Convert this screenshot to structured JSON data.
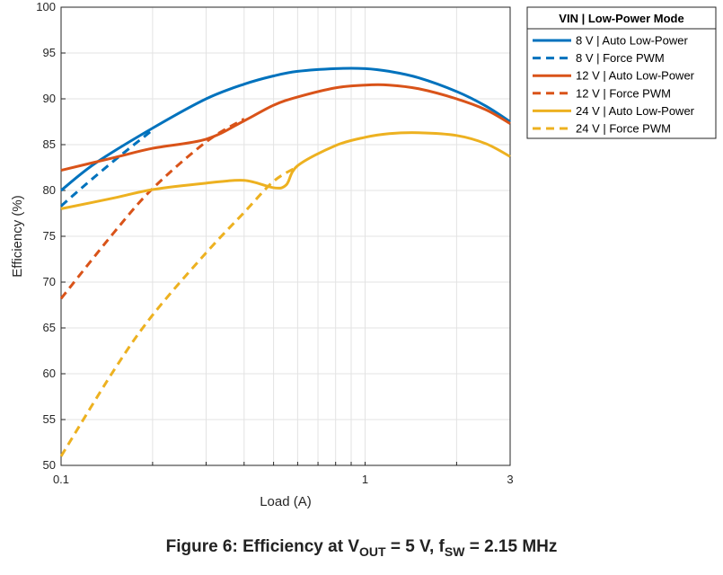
{
  "chart_data": {
    "type": "line",
    "title": "",
    "xlabel": "Load (A)",
    "ylabel": "Efficiency (%)",
    "xscale": "log",
    "xlim": [
      0.1,
      3
    ],
    "ylim": [
      50,
      100
    ],
    "grid": true,
    "x_ticks": [
      0.1,
      1,
      3
    ],
    "x_tick_labels": [
      "0.1",
      "1",
      "3"
    ],
    "y_ticks": [
      50,
      55,
      60,
      65,
      70,
      75,
      80,
      85,
      90,
      95,
      100
    ],
    "y_tick_labels": [
      "50",
      "55",
      "60",
      "65",
      "70",
      "75",
      "80",
      "85",
      "90",
      "95",
      "100"
    ],
    "legend_title": "VIN | Low-Power Mode",
    "legend_position": "outside top-right",
    "series": [
      {
        "name": "8 V | Auto Low-Power",
        "color": "#0072BD",
        "style": "solid",
        "x": [
          0.1,
          0.13,
          0.2,
          0.3,
          0.4,
          0.5,
          0.6,
          0.8,
          1.0,
          1.2,
          1.5,
          2.0,
          2.5,
          3.0
        ],
        "y": [
          80.0,
          83.0,
          86.8,
          90.0,
          91.6,
          92.5,
          93.0,
          93.3,
          93.3,
          93.0,
          92.3,
          90.8,
          89.2,
          87.5
        ]
      },
      {
        "name": "8 V | Force PWM",
        "color": "#0072BD",
        "style": "dashed",
        "x": [
          0.1,
          0.12,
          0.15,
          0.18,
          0.2
        ],
        "y": [
          78.3,
          80.6,
          83.3,
          85.4,
          86.6
        ]
      },
      {
        "name": "12 V | Auto Low-Power",
        "color": "#D95319",
        "style": "solid",
        "x": [
          0.1,
          0.15,
          0.2,
          0.3,
          0.4,
          0.5,
          0.6,
          0.8,
          1.0,
          1.2,
          1.5,
          2.0,
          2.5,
          3.0
        ],
        "y": [
          82.2,
          83.6,
          84.6,
          85.6,
          87.6,
          89.3,
          90.2,
          91.2,
          91.5,
          91.5,
          91.1,
          90.0,
          88.8,
          87.3
        ]
      },
      {
        "name": "12 V | Force PWM",
        "color": "#D95319",
        "style": "dashed",
        "x": [
          0.1,
          0.15,
          0.2,
          0.3,
          0.4
        ],
        "y": [
          68.2,
          75.5,
          80.2,
          85.3,
          87.8
        ]
      },
      {
        "name": "24 V | Auto Low-Power",
        "color": "#EDB120",
        "style": "solid",
        "x": [
          0.1,
          0.15,
          0.2,
          0.3,
          0.4,
          0.5,
          0.55,
          0.6,
          0.8,
          1.0,
          1.2,
          1.5,
          2.0,
          2.5,
          3.0
        ],
        "y": [
          78.0,
          79.2,
          80.1,
          80.8,
          81.1,
          80.3,
          80.6,
          82.7,
          84.9,
          85.8,
          86.2,
          86.3,
          86.0,
          85.1,
          83.7
        ]
      },
      {
        "name": "24 V | Force PWM",
        "color": "#EDB120",
        "style": "dashed",
        "x": [
          0.1,
          0.15,
          0.2,
          0.3,
          0.4,
          0.5,
          0.6
        ],
        "y": [
          51.0,
          60.5,
          66.4,
          73.2,
          77.6,
          81.0,
          82.6
        ]
      }
    ]
  },
  "figure": {
    "caption_prefix": "Figure 6: Efficiency at V",
    "caption_sub1": "OUT",
    "caption_mid": " = 5 V, f",
    "caption_sub2": "SW",
    "caption_suffix": " = 2.15 MHz"
  }
}
